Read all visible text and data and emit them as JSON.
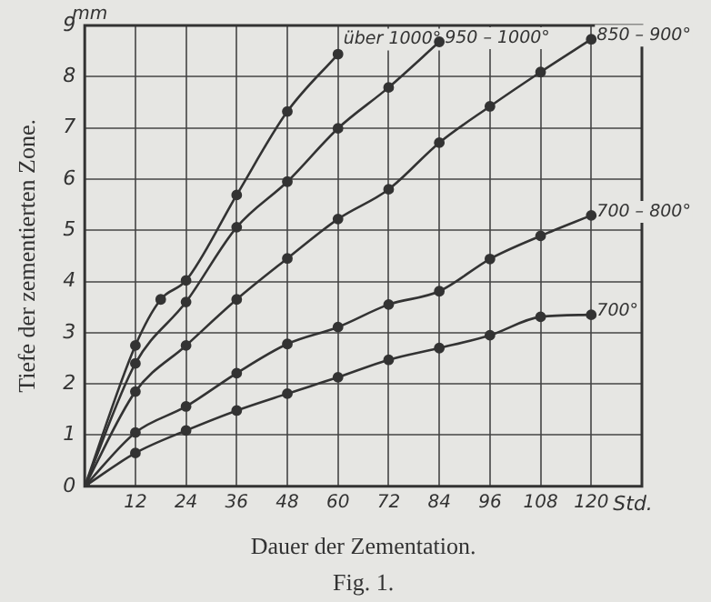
{
  "chart_data": {
    "type": "line",
    "xlabel": "Dauer der Zementation.",
    "ylabel": "Tiefe der zementierten Zone.",
    "annotations": [
      "mm",
      "Std.",
      "Fig. 1."
    ],
    "xlim": [
      0,
      132
    ],
    "xticks": [
      12,
      24,
      36,
      48,
      60,
      72,
      84,
      96,
      108,
      120
    ],
    "ylim": [
      0,
      9
    ],
    "yticks": [
      0,
      1,
      2,
      3,
      4,
      5,
      6,
      7,
      8,
      9
    ],
    "grid": true,
    "legend": false,
    "marker": "circle",
    "line_style": "solid",
    "series": [
      {
        "name": "über 1000°",
        "color": "#333333",
        "x": [
          0,
          12,
          18,
          24,
          36,
          48,
          60
        ],
        "values": [
          0,
          2.75,
          3.65,
          4.02,
          5.69,
          7.32,
          8.44
        ]
      },
      {
        "name": "950 – 1000°",
        "color": "#333333",
        "x": [
          0,
          12,
          24,
          36,
          48,
          60,
          72,
          84
        ],
        "values": [
          0,
          2.4,
          3.6,
          5.06,
          5.95,
          6.99,
          7.79,
          8.68
        ]
      },
      {
        "name": "850 – 900°",
        "color": "#333333",
        "x": [
          0,
          12,
          24,
          36,
          48,
          60,
          72,
          84,
          96,
          108,
          120
        ],
        "values": [
          0,
          1.85,
          2.75,
          3.65,
          4.45,
          5.22,
          5.8,
          6.71,
          7.42,
          8.09,
          8.73
        ]
      },
      {
        "name": "700 – 800°",
        "color": "#333333",
        "x": [
          0,
          12,
          24,
          36,
          48,
          60,
          72,
          84,
          96,
          108,
          120
        ],
        "values": [
          0,
          1.05,
          1.56,
          2.21,
          2.78,
          3.11,
          3.55,
          3.81,
          4.44,
          4.89,
          5.29
        ]
      },
      {
        "name": "700°",
        "color": "#333333",
        "x": [
          0,
          12,
          24,
          36,
          48,
          60,
          72,
          84,
          96,
          108,
          120
        ],
        "values": [
          0,
          0.65,
          1.09,
          1.48,
          1.81,
          2.13,
          2.47,
          2.7,
          2.95,
          3.31,
          3.35
        ]
      }
    ]
  }
}
